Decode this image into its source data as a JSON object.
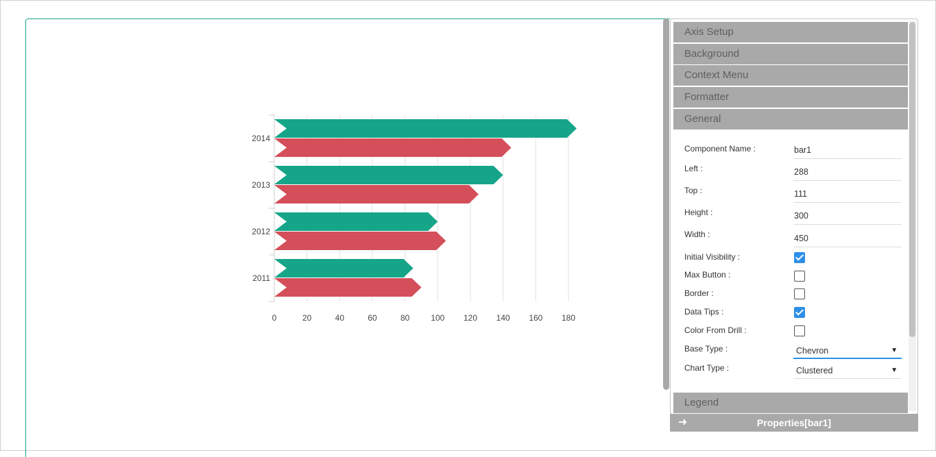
{
  "chart_data": {
    "type": "bar",
    "orientation": "horizontal",
    "base_type": "Chevron",
    "categories": [
      "2014",
      "2013",
      "2012",
      "2011"
    ],
    "series": [
      {
        "values": [
          185,
          140,
          100,
          85
        ],
        "color": "#16a589"
      },
      {
        "values": [
          145,
          125,
          105,
          90
        ],
        "color": "#d44f5a"
      }
    ],
    "x_ticks": [
      "0",
      "20",
      "40",
      "60",
      "80",
      "100",
      "120",
      "140",
      "160",
      "180"
    ],
    "xlim": [
      0,
      180
    ],
    "grid": "vertical"
  },
  "panel": {
    "sections_top": [
      "Axis Setup",
      "Background",
      "Context Menu",
      "Formatter",
      "General"
    ],
    "section_bottom": "Legend",
    "fields": {
      "component_name": {
        "label": "Component Name :",
        "value": "bar1"
      },
      "left": {
        "label": "Left :",
        "value": "288"
      },
      "top": {
        "label": "Top :",
        "value": "111"
      },
      "height": {
        "label": "Height :",
        "value": "300"
      },
      "width": {
        "label": "Width :",
        "value": "450"
      }
    },
    "checks": {
      "initial_visibility": {
        "label": "Initial Visibility :",
        "checked": true
      },
      "max_button": {
        "label": "Max Button :",
        "checked": false
      },
      "border": {
        "label": "Border :",
        "checked": false
      },
      "data_tips": {
        "label": "Data Tips :",
        "checked": true
      },
      "color_from_drill": {
        "label": "Color From Drill :",
        "checked": false
      }
    },
    "base_type": {
      "label": "Base Type :",
      "value": "Chevron"
    },
    "chart_type": {
      "label": "Chart Type :",
      "value": "Clustered"
    }
  },
  "footer": {
    "title": "Properties[bar1]",
    "arrow_icon": "arrow-right-icon"
  },
  "colors": {
    "accent": "#16a589",
    "header": "#a9a9a9",
    "check": "#2d8fe8"
  }
}
